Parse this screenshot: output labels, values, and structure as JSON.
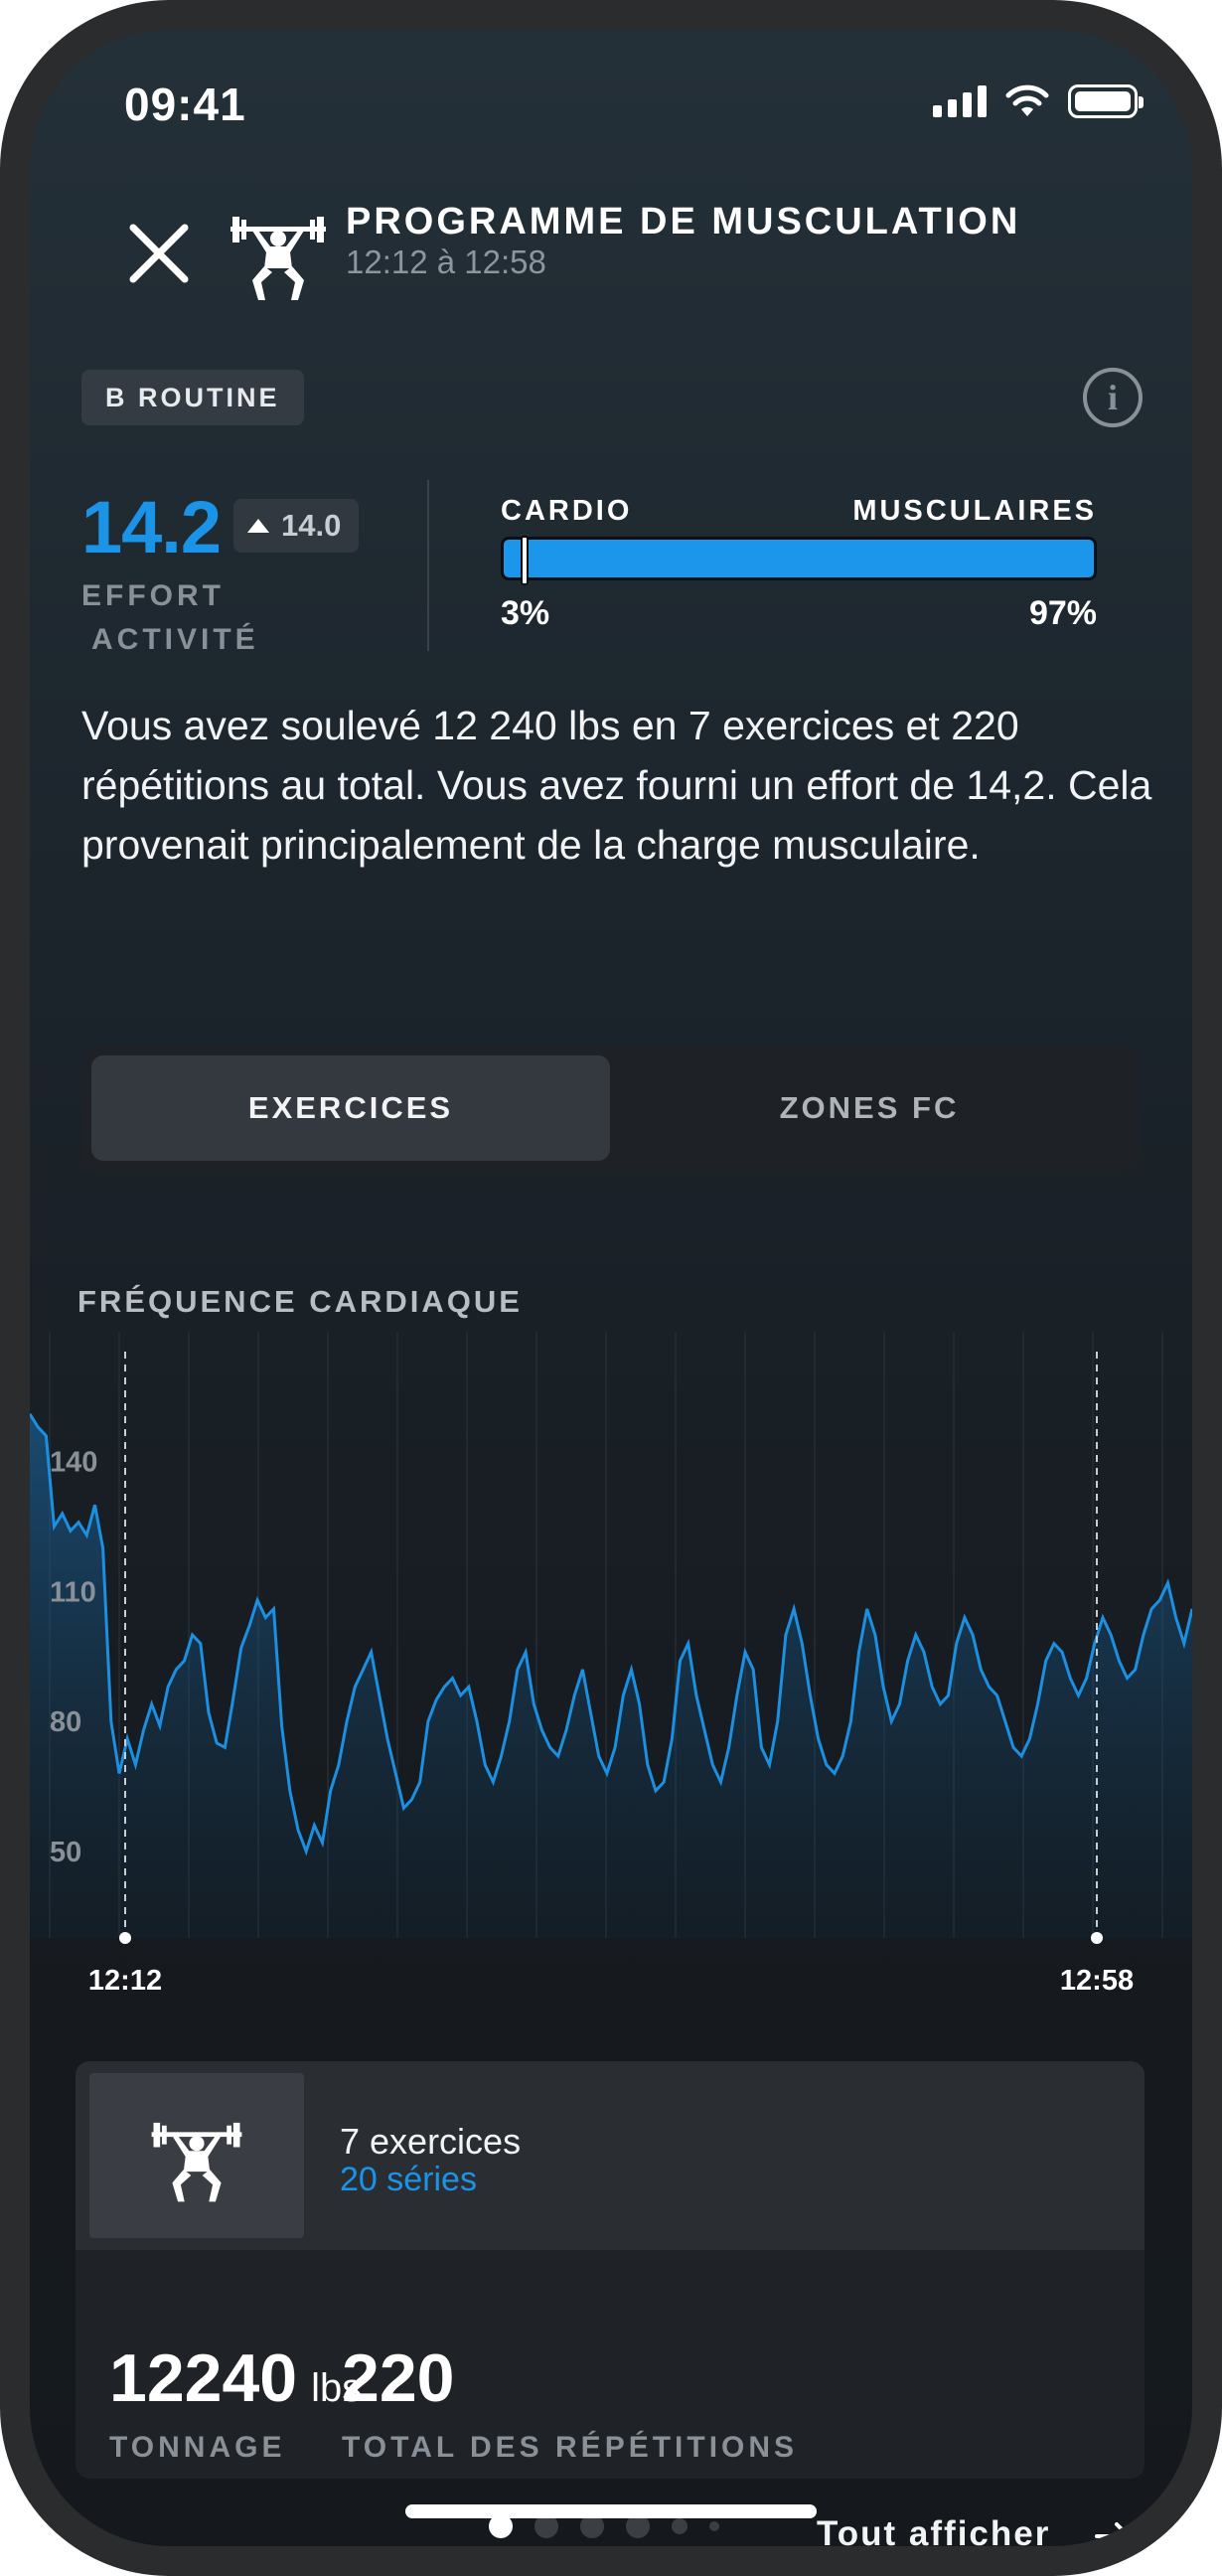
{
  "status_bar": {
    "time": "09:41"
  },
  "header": {
    "title": "PROGRAMME DE MUSCULATION",
    "subtitle": "12:12 à 12:58",
    "icon": "weightlifting-icon"
  },
  "badge": "B ROUTINE",
  "effort": {
    "value": "14.2",
    "delta": "14.0",
    "label_line1": "EFFORT",
    "label_line2": "ACTIVITÉ"
  },
  "load": {
    "cardio_label": "CARDIO",
    "muscular_label": "MUSCULAIRES",
    "cardio_pct_text": "3%",
    "muscular_pct_text": "97%",
    "cardio_fraction": 0.03,
    "bar_color": "#1c96ea"
  },
  "summary": "Vous avez soulevé 12 240 lbs en 7 exercices et 220  répétitions au total. Vous avez fourni un effort de 14,2. Cela provenait principalement de la charge musculaire.",
  "tabs": [
    {
      "label": "EXERCICES",
      "active": true
    },
    {
      "label": "ZONES FC",
      "active": false
    }
  ],
  "chart_title": "FRÉQUENCE CARDIAQUE",
  "chart_data": {
    "type": "area",
    "title": "FRÉQUENCE CARDIAQUE",
    "y_ticks": [
      "140",
      "110",
      "80",
      "50"
    ],
    "ylim": [
      30,
      170
    ],
    "x_labels": [
      "12:12",
      "12:58"
    ],
    "line_color": "#1d8fe0",
    "grid": true,
    "series": [
      {
        "values": [
          151,
          148,
          146,
          125,
          128,
          124,
          126,
          123,
          130,
          120,
          80,
          68,
          76,
          70,
          78,
          84,
          79,
          88,
          92,
          94,
          100,
          98,
          82,
          75,
          74,
          85,
          97,
          102,
          108,
          104,
          106,
          79,
          64,
          55,
          50,
          56,
          52,
          64,
          70,
          80,
          88,
          92,
          96,
          86,
          76,
          68,
          60,
          62,
          66,
          80,
          85,
          88,
          90,
          86,
          88,
          80,
          70,
          66,
          72,
          80,
          92,
          96,
          84,
          78,
          74,
          72,
          78,
          86,
          92,
          82,
          72,
          68,
          74,
          86,
          92,
          84,
          70,
          64,
          66,
          76,
          94,
          98,
          86,
          78,
          70,
          66,
          74,
          86,
          96,
          92,
          74,
          70,
          80,
          100,
          106,
          98,
          86,
          76,
          70,
          68,
          72,
          80,
          96,
          106,
          100,
          88,
          80,
          84,
          94,
          100,
          96,
          88,
          84,
          86,
          98,
          104,
          100,
          92,
          88,
          86,
          80,
          74,
          72,
          76,
          84,
          94,
          98,
          96,
          90,
          86,
          90,
          98,
          104,
          100,
          94,
          90,
          92,
          100,
          106,
          108,
          112,
          104,
          98,
          106
        ]
      }
    ]
  },
  "card": {
    "exercises": "7 exercices",
    "series": "20 séries",
    "tonnage_value": "12240",
    "tonnage_unit": "lbs",
    "tonnage_label": "TONNAGE",
    "reps_value": "220",
    "reps_label": "TOTAL DES RÉPÉTITIONS"
  },
  "footer": {
    "see_all": "Tout afficher"
  }
}
